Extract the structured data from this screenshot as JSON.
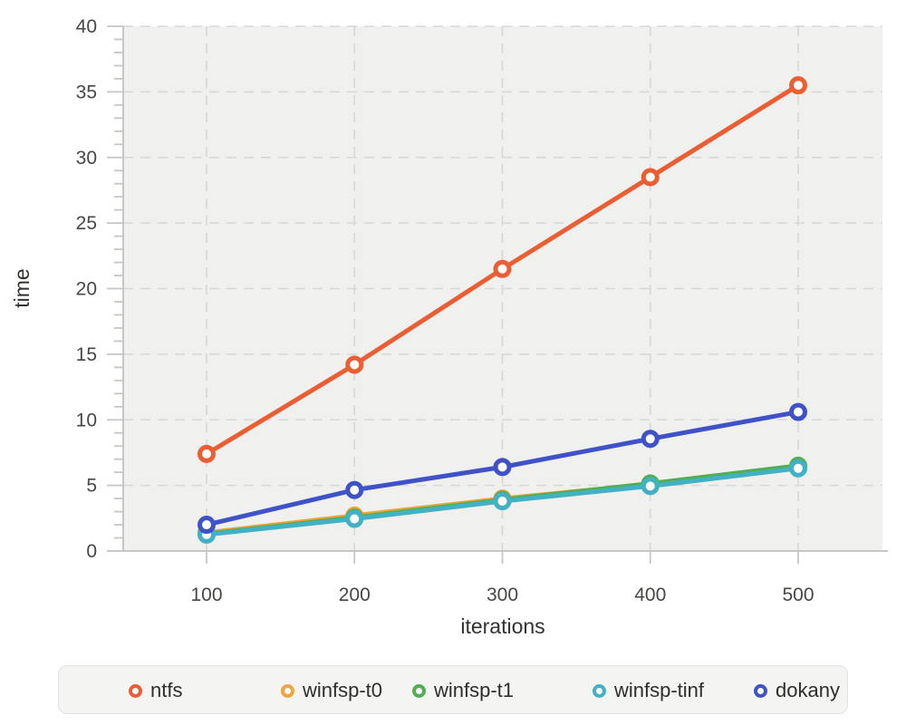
{
  "chart_data": {
    "type": "line",
    "title": "",
    "xlabel": "iterations",
    "ylabel": "time",
    "x": [
      100,
      200,
      300,
      400,
      500
    ],
    "x_ticks": [
      100,
      200,
      300,
      400,
      500
    ],
    "ylim": [
      0,
      40
    ],
    "y_major_ticks": [
      0,
      5,
      10,
      15,
      20,
      25,
      30,
      35,
      40
    ],
    "y_minor_step": 1,
    "grid": "dashed",
    "legend_position": "bottom",
    "series": [
      {
        "name": "ntfs",
        "color": "#eb5e34",
        "values": [
          7.4,
          14.2,
          21.5,
          28.5,
          35.5
        ]
      },
      {
        "name": "winfsp-t0",
        "color": "#f0a43c",
        "values": [
          1.4,
          2.7,
          4.0,
          5.1,
          6.4
        ]
      },
      {
        "name": "winfsp-t1",
        "color": "#52ae52",
        "values": [
          1.3,
          2.55,
          3.9,
          5.15,
          6.5
        ]
      },
      {
        "name": "winfsp-tinf",
        "color": "#43b1c4",
        "values": [
          1.25,
          2.45,
          3.8,
          4.95,
          6.3
        ]
      },
      {
        "name": "dokany",
        "color": "#4052c8",
        "values": [
          2.0,
          4.65,
          6.4,
          8.55,
          10.6
        ]
      }
    ]
  },
  "colors": {
    "plot_bg": "#f0f0ef",
    "grid": "#d7d7d7",
    "axis": "#c6c6c5",
    "tick_label": "#494744",
    "axis_label": "#33322f",
    "legend_bg": "#f4f4f3",
    "legend_border": "#e2e2e1",
    "legend_text": "#2f2e2b"
  }
}
